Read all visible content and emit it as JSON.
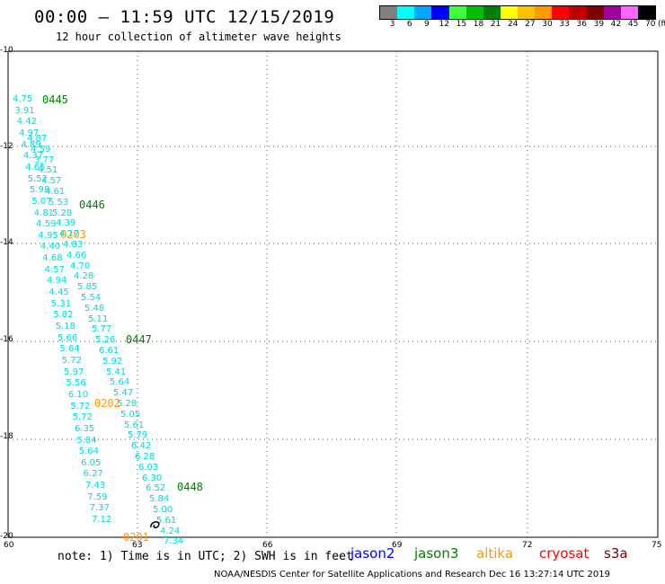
{
  "title": "00:00 – 11:59 UTC 12/15/2019",
  "subtitle": "12 hour collection of altimeter wave heights",
  "color_scale": {
    "labels": [
      "3",
      "6",
      "9",
      "12",
      "15",
      "18",
      "21",
      "24",
      "27",
      "30",
      "33",
      "36",
      "39",
      "42",
      "45",
      "70",
      "(ft)"
    ],
    "colors": [
      "#808080",
      "#00ffff",
      "#00a8ff",
      "#0000ff",
      "#40ff40",
      "#00c000",
      "#008000",
      "#ffff00",
      "#ffc000",
      "#ff9900",
      "#ff0000",
      "#c00000",
      "#800000",
      "#a000a0",
      "#ff66ff",
      "#000000"
    ]
  },
  "axes": {
    "y_ticks": [
      "-10",
      "-12",
      "-14",
      "-16",
      "-18",
      "-20"
    ],
    "x_ticks": [
      "60",
      "63",
      "66",
      "69",
      "72",
      "75"
    ]
  },
  "track_labels": [
    {
      "text": "0445",
      "color": "#008000"
    },
    {
      "text": "0446",
      "color": "#008000"
    },
    {
      "text": "0203",
      "color": "#ff9900"
    },
    {
      "text": "0447",
      "color": "#008000"
    },
    {
      "text": "0202",
      "color": "#ff9900"
    },
    {
      "text": "0448",
      "color": "#008000"
    },
    {
      "text": "0201",
      "color": "#ff9900"
    }
  ],
  "wave_heights": {
    "track_a": [
      "4.75",
      "3.91",
      "4.42",
      "4.97",
      "4.89",
      "4.37",
      "4.65",
      "5.52",
      "5.98",
      "5.07",
      "4.81",
      "4.59",
      "4.95",
      "4.40",
      "4.68",
      "4.57",
      "4.94",
      "4.45",
      "5.31",
      "5.82",
      "5.18",
      "5.66",
      "5.64",
      "5.72",
      "5.97",
      "5.56",
      "6.10",
      "5.72",
      "5.72",
      "6.35",
      "5.84",
      "5.64",
      "6.05",
      "6.27",
      "7.43",
      "7.59",
      "7.37",
      "7.12"
    ],
    "track_b": [
      "4.87",
      "4.59",
      "3.77",
      "4.51",
      "4.57",
      "4.61",
      "5.53",
      "5.28",
      "4.39",
      "4.17",
      "4.83",
      "4.66",
      "4.70",
      "4.28",
      "5.85",
      "5.54",
      "5.48",
      "5.11",
      "5.77",
      "5.26",
      "6.61",
      "5.92",
      "5.41",
      "5.64",
      "5.47",
      "5.28",
      "5.05",
      "5.61",
      "5.79",
      "6.42",
      "6.28",
      "6.03",
      "6.30",
      "6.52",
      "5.84",
      "5.00",
      "5.61",
      "4.24",
      "7.34"
    ]
  },
  "note": "note:  1) Time is in UTC; 2) SWH is in feet",
  "legend": [
    {
      "name": "jason2",
      "color": "#0000ff"
    },
    {
      "name": "jason3",
      "color": "#008000"
    },
    {
      "name": "altika",
      "color": "#ff9900"
    },
    {
      "name": "cryosat",
      "color": "#ff0000"
    },
    {
      "name": "s3a",
      "color": "#800000"
    }
  ],
  "footer": "NOAA/NESDIS Center for Satellite Applications and Research    Dec 16 13:27:14 UTC 2019"
}
